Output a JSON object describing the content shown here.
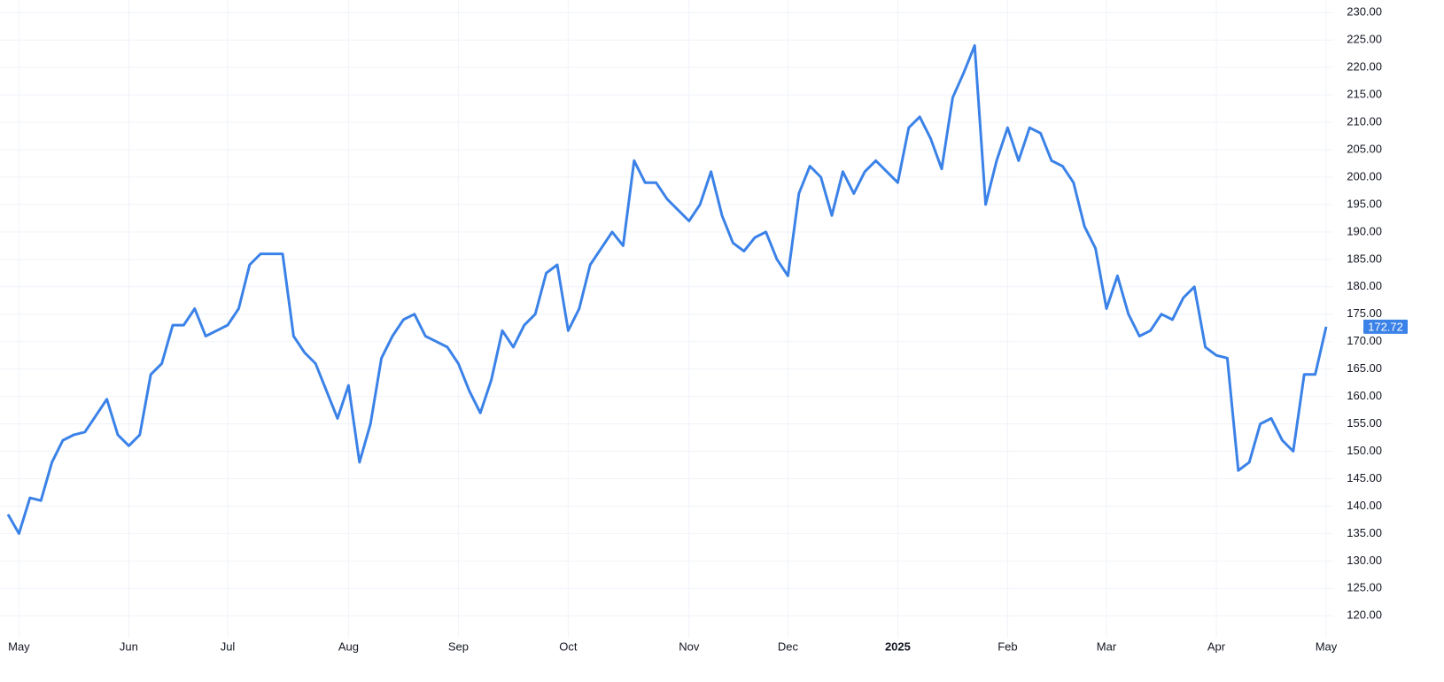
{
  "chart_data": {
    "type": "line",
    "categories": [
      null,
      "May",
      null,
      null,
      null,
      null,
      null,
      null,
      null,
      null,
      null,
      "Jun",
      null,
      null,
      null,
      null,
      null,
      null,
      null,
      null,
      "Jul",
      null,
      null,
      null,
      null,
      null,
      null,
      null,
      null,
      null,
      null,
      "Aug",
      null,
      null,
      null,
      null,
      null,
      null,
      null,
      null,
      null,
      "Sep",
      null,
      null,
      null,
      null,
      null,
      null,
      null,
      null,
      null,
      "Oct",
      null,
      null,
      null,
      null,
      null,
      null,
      null,
      null,
      null,
      null,
      "Nov",
      null,
      null,
      null,
      null,
      null,
      null,
      null,
      null,
      "Dec",
      null,
      null,
      null,
      null,
      null,
      null,
      null,
      null,
      null,
      "2025",
      null,
      null,
      null,
      null,
      null,
      null,
      null,
      null,
      null,
      "Feb",
      null,
      null,
      null,
      null,
      null,
      null,
      null,
      null,
      "Mar",
      null,
      null,
      null,
      null,
      null,
      null,
      null,
      null,
      null,
      "Apr",
      null,
      null,
      null,
      null,
      null,
      null,
      null,
      null,
      null,
      "May"
    ],
    "values": [
      138.5,
      135,
      141.5,
      141,
      148,
      152,
      153,
      153.5,
      156.5,
      159.5,
      153,
      151,
      153,
      164,
      166,
      173,
      173,
      176,
      171,
      172,
      173,
      176,
      184,
      186,
      186,
      186,
      171,
      168,
      166,
      161,
      156,
      162,
      148,
      155,
      167,
      171,
      174,
      175,
      171,
      170,
      169,
      166,
      161,
      157,
      163,
      172,
      169,
      173,
      175,
      182.5,
      184,
      172,
      176,
      184,
      187,
      190,
      187.5,
      203,
      199,
      199,
      196,
      194,
      192,
      195,
      201,
      193,
      188,
      186.5,
      189,
      190,
      185,
      182,
      197,
      202,
      200,
      193,
      201,
      197,
      201,
      203,
      201,
      199,
      209,
      211,
      207,
      201.5,
      214.5,
      219,
      224,
      195,
      203,
      209,
      203,
      209,
      208,
      203,
      202,
      199,
      191,
      187,
      176,
      182,
      175,
      171,
      172,
      175,
      174,
      178,
      180,
      169,
      167.5,
      167,
      146.5,
      148,
      155,
      156,
      152,
      150,
      164,
      164,
      172.72
    ],
    "color": "#3b82e8",
    "ylim": [
      116,
      232.3
    ],
    "yticks": [
      {
        "value": 120,
        "label": "120.00"
      },
      {
        "value": 125,
        "label": "125.00"
      },
      {
        "value": 130,
        "label": "130.00"
      },
      {
        "value": 135,
        "label": "135.00"
      },
      {
        "value": 140,
        "label": "140.00"
      },
      {
        "value": 145,
        "label": "145.00"
      },
      {
        "value": 150,
        "label": "150.00"
      },
      {
        "value": 155,
        "label": "155.00"
      },
      {
        "value": 160,
        "label": "160.00"
      },
      {
        "value": 165,
        "label": "165.00"
      },
      {
        "value": 170,
        "label": "170.00"
      },
      {
        "value": 175,
        "label": "175.00"
      },
      {
        "value": 180,
        "label": "180.00"
      },
      {
        "value": 185,
        "label": "185.00"
      },
      {
        "value": 190,
        "label": "190.00"
      },
      {
        "value": 195,
        "label": "195.00"
      },
      {
        "value": 200,
        "label": "200.00"
      },
      {
        "value": 205,
        "label": "205.00"
      },
      {
        "value": 210,
        "label": "210.00"
      },
      {
        "value": 215,
        "label": "215.00"
      },
      {
        "value": 220,
        "label": "220.00"
      },
      {
        "value": 225,
        "label": "225.00"
      },
      {
        "value": 230,
        "label": "230.00"
      }
    ],
    "grid": true
  }
}
